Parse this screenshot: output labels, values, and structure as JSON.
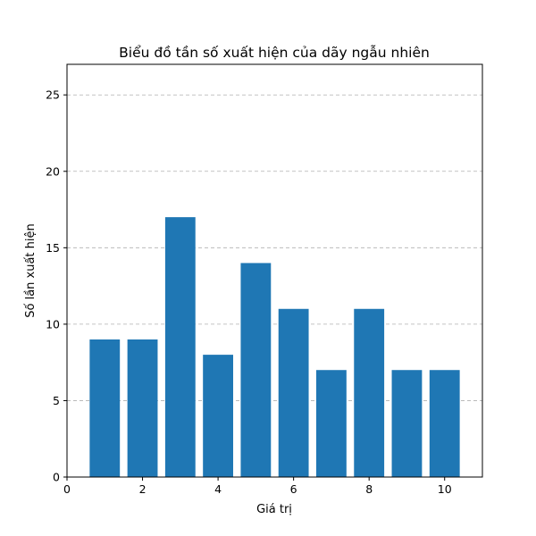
{
  "chart_data": {
    "type": "bar",
    "title": "Biểu đồ tần số xuất hiện của dãy ngẫu nhiên",
    "xlabel": "Giá trị",
    "ylabel": "Số lần xuất hiện",
    "x": [
      1,
      2,
      3,
      4,
      5,
      6,
      7,
      8,
      9,
      10
    ],
    "values": [
      9,
      9,
      17,
      8,
      14,
      11,
      7,
      11,
      7,
      7
    ],
    "xlim": [
      0,
      11
    ],
    "ylim": [
      0,
      27
    ],
    "xticks": [
      0,
      2,
      4,
      6,
      8,
      10
    ],
    "yticks": [
      0,
      5,
      10,
      15,
      20,
      25
    ],
    "grid": "y-dashed",
    "color": "#1f77b4"
  }
}
